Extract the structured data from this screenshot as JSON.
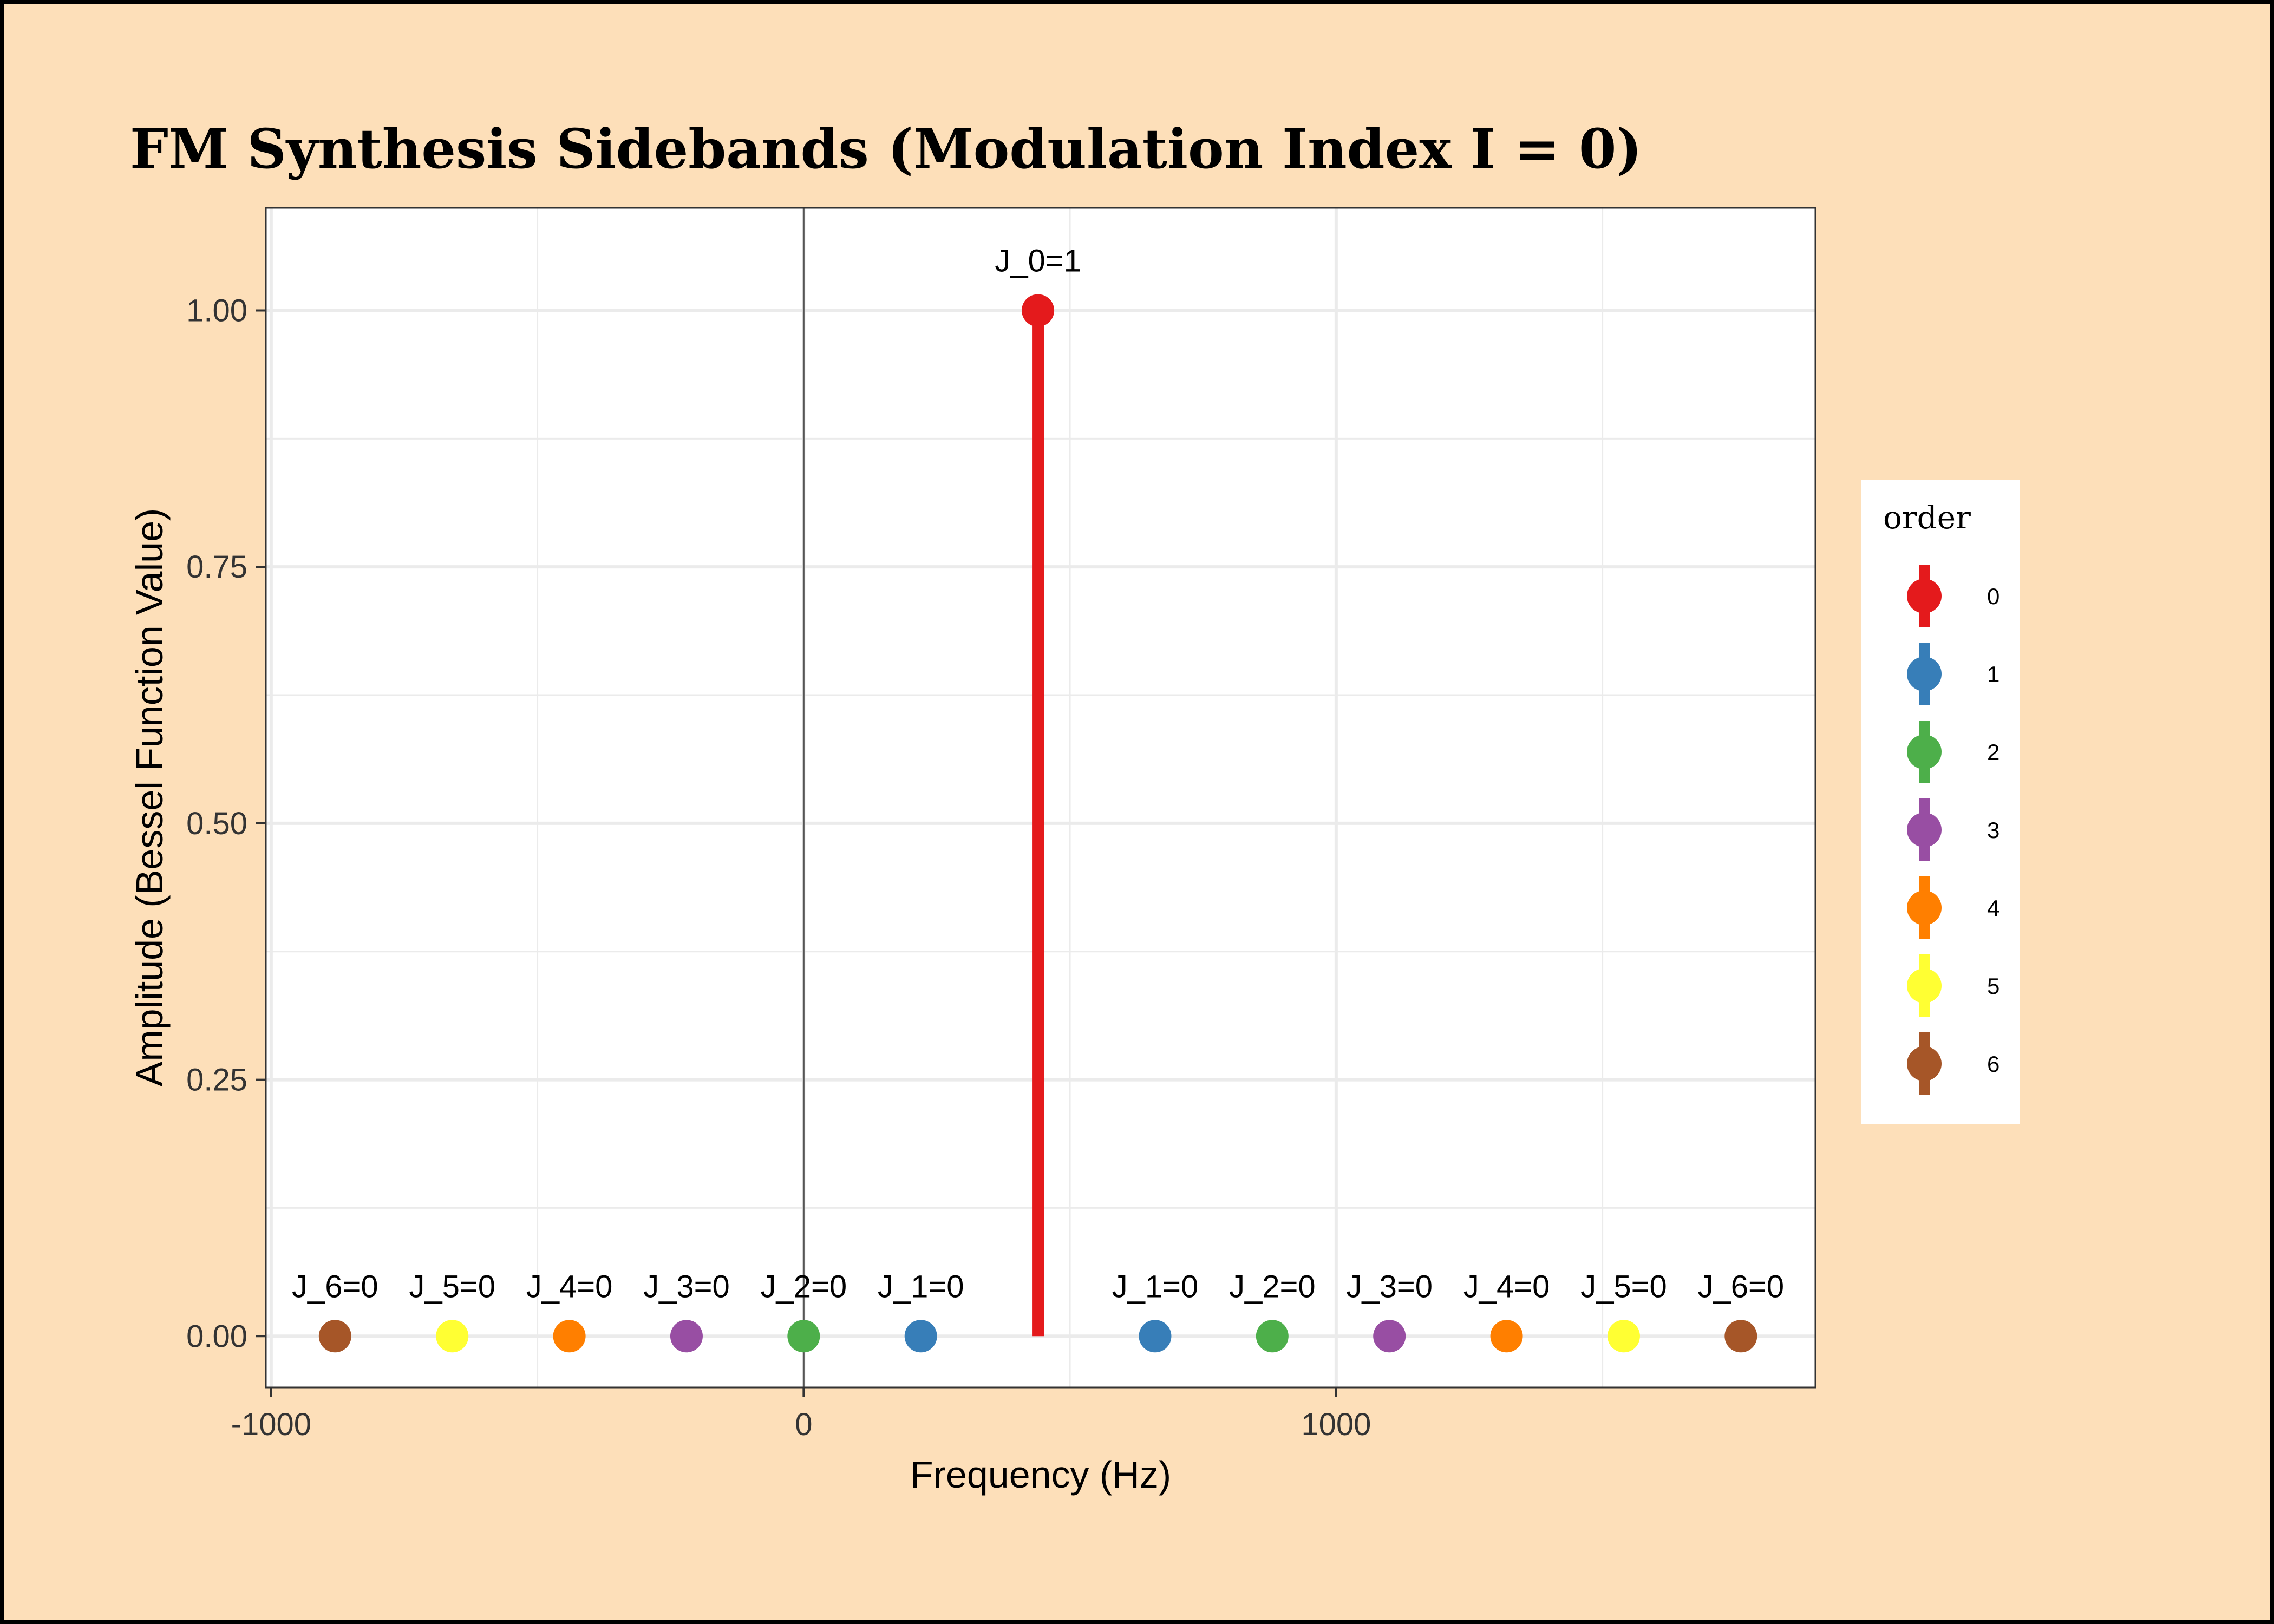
{
  "chart_data": {
    "type": "scatter",
    "title": "FM Synthesis Sidebands (Modulation Index I = 0)",
    "xlabel": "Frequency (Hz)",
    "ylabel": "Amplitude (Bessel Function Value)",
    "xlim": [
      -1010,
      1900
    ],
    "ylim": [
      -0.05,
      1.1
    ],
    "x_ticks": [
      -1000,
      0,
      1000
    ],
    "x_tick_labels": [
      "-1000",
      "0",
      "1000"
    ],
    "y_ticks": [
      0,
      0.25,
      0.5,
      0.75,
      1
    ],
    "y_tick_labels": [
      "0.00",
      "0.25",
      "0.50",
      "0.75",
      "1.00"
    ],
    "grid": true,
    "zero_line_x": 0,
    "legend": {
      "title": "order",
      "position": "right",
      "entries": [
        {
          "label": "0",
          "color": "#e41a1c"
        },
        {
          "label": "1",
          "color": "#377eb8"
        },
        {
          "label": "2",
          "color": "#4daf4a"
        },
        {
          "label": "3",
          "color": "#984ea3"
        },
        {
          "label": "4",
          "color": "#ff7f00"
        },
        {
          "label": "5",
          "color": "#ffff33"
        },
        {
          "label": "6",
          "color": "#a65628"
        }
      ]
    },
    "points": [
      {
        "x": -880,
        "y": 0,
        "order": 6,
        "label": "J_6=0"
      },
      {
        "x": -660,
        "y": 0,
        "order": 5,
        "label": "J_5=0"
      },
      {
        "x": -440,
        "y": 0,
        "order": 4,
        "label": "J_4=0"
      },
      {
        "x": -220,
        "y": 0,
        "order": 3,
        "label": "J_3=0"
      },
      {
        "x": 0,
        "y": 0,
        "order": 2,
        "label": "J_2=0"
      },
      {
        "x": 220,
        "y": 0,
        "order": 1,
        "label": "J_1=0"
      },
      {
        "x": 440,
        "y": 1,
        "order": 0,
        "label": "J_0=1"
      },
      {
        "x": 660,
        "y": 0,
        "order": 1,
        "label": "J_1=0"
      },
      {
        "x": 880,
        "y": 0,
        "order": 2,
        "label": "J_2=0"
      },
      {
        "x": 1100,
        "y": 0,
        "order": 3,
        "label": "J_3=0"
      },
      {
        "x": 1320,
        "y": 0,
        "order": 4,
        "label": "J_4=0"
      },
      {
        "x": 1540,
        "y": 0,
        "order": 5,
        "label": "J_5=0"
      },
      {
        "x": 1760,
        "y": 0,
        "order": 6,
        "label": "J_6=0"
      }
    ]
  },
  "colors": {
    "background": "#fddfb9",
    "panel": "#ffffff",
    "grid": "#ebebeb",
    "zero_line": "#555555"
  }
}
